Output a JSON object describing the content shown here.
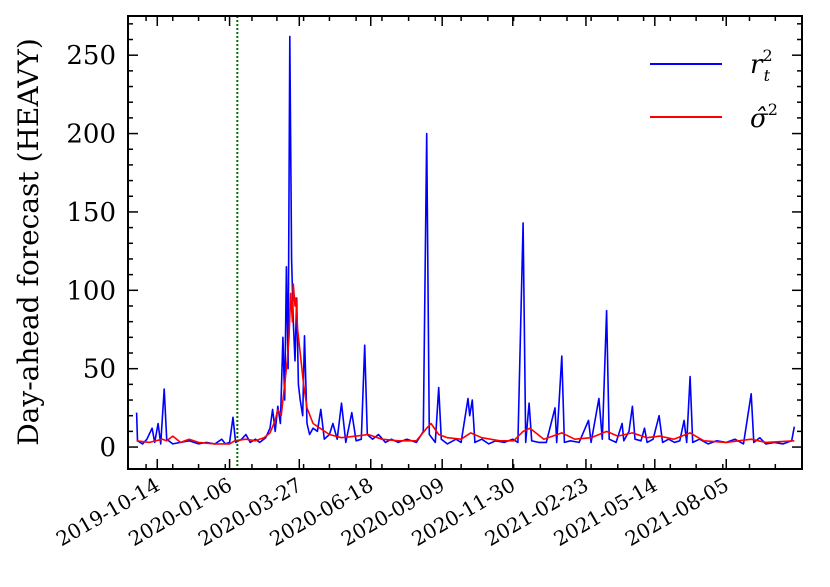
{
  "chart_data": {
    "type": "line",
    "title": "",
    "xlabel": "",
    "ylabel": "Day-ahead forecast (HEAVY)",
    "x_ticks": [
      "2019-10-14",
      "2020-01-06",
      "2020-03-27",
      "2020-06-18",
      "2020-09-09",
      "2020-11-30",
      "2021-02-23",
      "2021-05-14",
      "2021-08-05"
    ],
    "y_ticks": [
      0,
      50,
      100,
      150,
      200,
      250
    ],
    "xlim": [
      "2019-09-10",
      "2021-11-01"
    ],
    "ylim": [
      -14,
      275
    ],
    "vline": {
      "x": "2020-01-15",
      "color": "#007000",
      "style": "dotted"
    },
    "legend": {
      "position": "top-right"
    },
    "series": [
      {
        "name": "r_t^2",
        "color": "#0000ff",
        "points": [
          [
            "2019-09-20",
            22
          ],
          [
            "2019-09-21",
            4
          ],
          [
            "2019-09-27",
            2
          ],
          [
            "2019-10-02",
            5
          ],
          [
            "2019-10-08",
            12
          ],
          [
            "2019-10-11",
            3
          ],
          [
            "2019-10-15",
            15
          ],
          [
            "2019-10-18",
            2
          ],
          [
            "2019-10-22",
            37
          ],
          [
            "2019-10-25",
            5
          ],
          [
            "2019-11-01",
            2
          ],
          [
            "2019-11-10",
            3
          ],
          [
            "2019-11-20",
            4
          ],
          [
            "2019-12-01",
            2
          ],
          [
            "2019-12-10",
            3
          ],
          [
            "2019-12-20",
            2
          ],
          [
            "2019-12-28",
            5
          ],
          [
            "2020-01-01",
            2
          ],
          [
            "2020-01-06",
            3
          ],
          [
            "2020-01-10",
            19
          ],
          [
            "2020-01-13",
            3
          ],
          [
            "2020-01-20",
            5
          ],
          [
            "2020-01-25",
            8
          ],
          [
            "2020-01-30",
            3
          ],
          [
            "2020-02-05",
            5
          ],
          [
            "2020-02-10",
            3
          ],
          [
            "2020-02-17",
            6
          ],
          [
            "2020-02-22",
            12
          ],
          [
            "2020-02-25",
            24
          ],
          [
            "2020-02-28",
            10
          ],
          [
            "2020-03-02",
            26
          ],
          [
            "2020-03-05",
            15
          ],
          [
            "2020-03-08",
            70
          ],
          [
            "2020-03-10",
            30
          ],
          [
            "2020-03-12",
            115
          ],
          [
            "2020-03-14",
            50
          ],
          [
            "2020-03-16",
            262
          ],
          [
            "2020-03-18",
            120
          ],
          [
            "2020-03-20",
            80
          ],
          [
            "2020-03-22",
            55
          ],
          [
            "2020-03-24",
            95
          ],
          [
            "2020-03-26",
            40
          ],
          [
            "2020-03-28",
            30
          ],
          [
            "2020-03-31",
            20
          ],
          [
            "2020-04-02",
            71
          ],
          [
            "2020-04-05",
            15
          ],
          [
            "2020-04-08",
            8
          ],
          [
            "2020-04-12",
            12
          ],
          [
            "2020-04-17",
            10
          ],
          [
            "2020-04-21",
            24
          ],
          [
            "2020-04-25",
            5
          ],
          [
            "2020-05-01",
            8
          ],
          [
            "2020-05-05",
            15
          ],
          [
            "2020-05-10",
            5
          ],
          [
            "2020-05-15",
            28
          ],
          [
            "2020-05-20",
            3
          ],
          [
            "2020-05-27",
            22
          ],
          [
            "2020-06-01",
            4
          ],
          [
            "2020-06-07",
            5
          ],
          [
            "2020-06-11",
            65
          ],
          [
            "2020-06-14",
            8
          ],
          [
            "2020-06-20",
            5
          ],
          [
            "2020-06-27",
            8
          ],
          [
            "2020-07-05",
            3
          ],
          [
            "2020-07-12",
            5
          ],
          [
            "2020-07-20",
            3
          ],
          [
            "2020-07-30",
            5
          ],
          [
            "2020-08-10",
            3
          ],
          [
            "2020-08-18",
            10
          ],
          [
            "2020-08-22",
            200
          ],
          [
            "2020-08-25",
            8
          ],
          [
            "2020-09-01",
            3
          ],
          [
            "2020-09-05",
            38
          ],
          [
            "2020-09-08",
            5
          ],
          [
            "2020-09-15",
            2
          ],
          [
            "2020-09-25",
            5
          ],
          [
            "2020-10-01",
            3
          ],
          [
            "2020-10-09",
            31
          ],
          [
            "2020-10-11",
            20
          ],
          [
            "2020-10-14",
            30
          ],
          [
            "2020-10-17",
            3
          ],
          [
            "2020-10-25",
            5
          ],
          [
            "2020-11-02",
            2
          ],
          [
            "2020-11-10",
            4
          ],
          [
            "2020-11-20",
            3
          ],
          [
            "2020-11-30",
            5
          ],
          [
            "2020-12-06",
            3
          ],
          [
            "2020-12-12",
            143
          ],
          [
            "2020-12-15",
            3
          ],
          [
            "2020-12-19",
            28
          ],
          [
            "2020-12-22",
            4
          ],
          [
            "2020-12-30",
            3
          ],
          [
            "2021-01-08",
            3
          ],
          [
            "2021-01-18",
            25
          ],
          [
            "2021-01-20",
            3
          ],
          [
            "2021-01-26",
            58
          ],
          [
            "2021-01-29",
            3
          ],
          [
            "2021-02-05",
            4
          ],
          [
            "2021-02-15",
            3
          ],
          [
            "2021-02-26",
            17
          ],
          [
            "2021-03-01",
            3
          ],
          [
            "2021-03-10",
            31
          ],
          [
            "2021-03-14",
            5
          ],
          [
            "2021-03-19",
            87
          ],
          [
            "2021-03-22",
            5
          ],
          [
            "2021-03-30",
            3
          ],
          [
            "2021-04-06",
            15
          ],
          [
            "2021-04-08",
            4
          ],
          [
            "2021-04-14",
            10
          ],
          [
            "2021-04-18",
            26
          ],
          [
            "2021-04-21",
            5
          ],
          [
            "2021-04-28",
            4
          ],
          [
            "2021-05-02",
            12
          ],
          [
            "2021-05-05",
            3
          ],
          [
            "2021-05-12",
            5
          ],
          [
            "2021-05-19",
            20
          ],
          [
            "2021-05-23",
            3
          ],
          [
            "2021-05-30",
            5
          ],
          [
            "2021-06-06",
            3
          ],
          [
            "2021-06-12",
            4
          ],
          [
            "2021-06-17",
            17
          ],
          [
            "2021-06-20",
            3
          ],
          [
            "2021-06-24",
            45
          ],
          [
            "2021-06-27",
            3
          ],
          [
            "2021-07-05",
            5
          ],
          [
            "2021-07-15",
            2
          ],
          [
            "2021-07-25",
            4
          ],
          [
            "2021-08-05",
            3
          ],
          [
            "2021-08-15",
            5
          ],
          [
            "2021-08-25",
            2
          ],
          [
            "2021-09-03",
            34
          ],
          [
            "2021-09-06",
            3
          ],
          [
            "2021-09-13",
            6
          ],
          [
            "2021-09-20",
            2
          ],
          [
            "2021-09-30",
            3
          ],
          [
            "2021-10-10",
            2
          ],
          [
            "2021-10-20",
            4
          ],
          [
            "2021-10-23",
            13
          ]
        ]
      },
      {
        "name": "σ̂^2",
        "color": "#ff0000",
        "points": [
          [
            "2019-09-20",
            4
          ],
          [
            "2019-10-05",
            3
          ],
          [
            "2019-10-20",
            5
          ],
          [
            "2019-10-25",
            4
          ],
          [
            "2019-11-01",
            7
          ],
          [
            "2019-11-10",
            3
          ],
          [
            "2019-11-20",
            5
          ],
          [
            "2019-12-01",
            3
          ],
          [
            "2019-12-20",
            2
          ],
          [
            "2020-01-06",
            2
          ],
          [
            "2020-01-12",
            4
          ],
          [
            "2020-01-25",
            5
          ],
          [
            "2020-02-05",
            4
          ],
          [
            "2020-02-15",
            6
          ],
          [
            "2020-02-22",
            9
          ],
          [
            "2020-02-28",
            17
          ],
          [
            "2020-03-02",
            24
          ],
          [
            "2020-03-06",
            20
          ],
          [
            "2020-03-10",
            40
          ],
          [
            "2020-03-13",
            55
          ],
          [
            "2020-03-15",
            70
          ],
          [
            "2020-03-17",
            98
          ],
          [
            "2020-03-19",
            80
          ],
          [
            "2020-03-20",
            104
          ],
          [
            "2020-03-22",
            90
          ],
          [
            "2020-03-23",
            95
          ],
          [
            "2020-03-25",
            75
          ],
          [
            "2020-03-28",
            60
          ],
          [
            "2020-04-01",
            40
          ],
          [
            "2020-04-05",
            25
          ],
          [
            "2020-04-12",
            15
          ],
          [
            "2020-04-20",
            12
          ],
          [
            "2020-05-01",
            8
          ],
          [
            "2020-05-15",
            6
          ],
          [
            "2020-06-01",
            7
          ],
          [
            "2020-06-15",
            8
          ],
          [
            "2020-07-01",
            5
          ],
          [
            "2020-07-20",
            4
          ],
          [
            "2020-08-10",
            4
          ],
          [
            "2020-08-22",
            12
          ],
          [
            "2020-08-27",
            15
          ],
          [
            "2020-09-05",
            8
          ],
          [
            "2020-09-15",
            6
          ],
          [
            "2020-10-01",
            5
          ],
          [
            "2020-10-12",
            9
          ],
          [
            "2020-10-25",
            6
          ],
          [
            "2020-11-15",
            4
          ],
          [
            "2020-12-01",
            4
          ],
          [
            "2020-12-12",
            10
          ],
          [
            "2020-12-20",
            12
          ],
          [
            "2021-01-05",
            5
          ],
          [
            "2021-01-26",
            9
          ],
          [
            "2021-02-10",
            5
          ],
          [
            "2021-03-01",
            6
          ],
          [
            "2021-03-19",
            10
          ],
          [
            "2021-04-01",
            7
          ],
          [
            "2021-04-18",
            9
          ],
          [
            "2021-05-05",
            6
          ],
          [
            "2021-05-20",
            7
          ],
          [
            "2021-06-05",
            5
          ],
          [
            "2021-06-24",
            9
          ],
          [
            "2021-07-10",
            4
          ],
          [
            "2021-08-05",
            3
          ],
          [
            "2021-09-03",
            5
          ],
          [
            "2021-09-20",
            3
          ],
          [
            "2021-10-23",
            4
          ]
        ]
      }
    ]
  }
}
